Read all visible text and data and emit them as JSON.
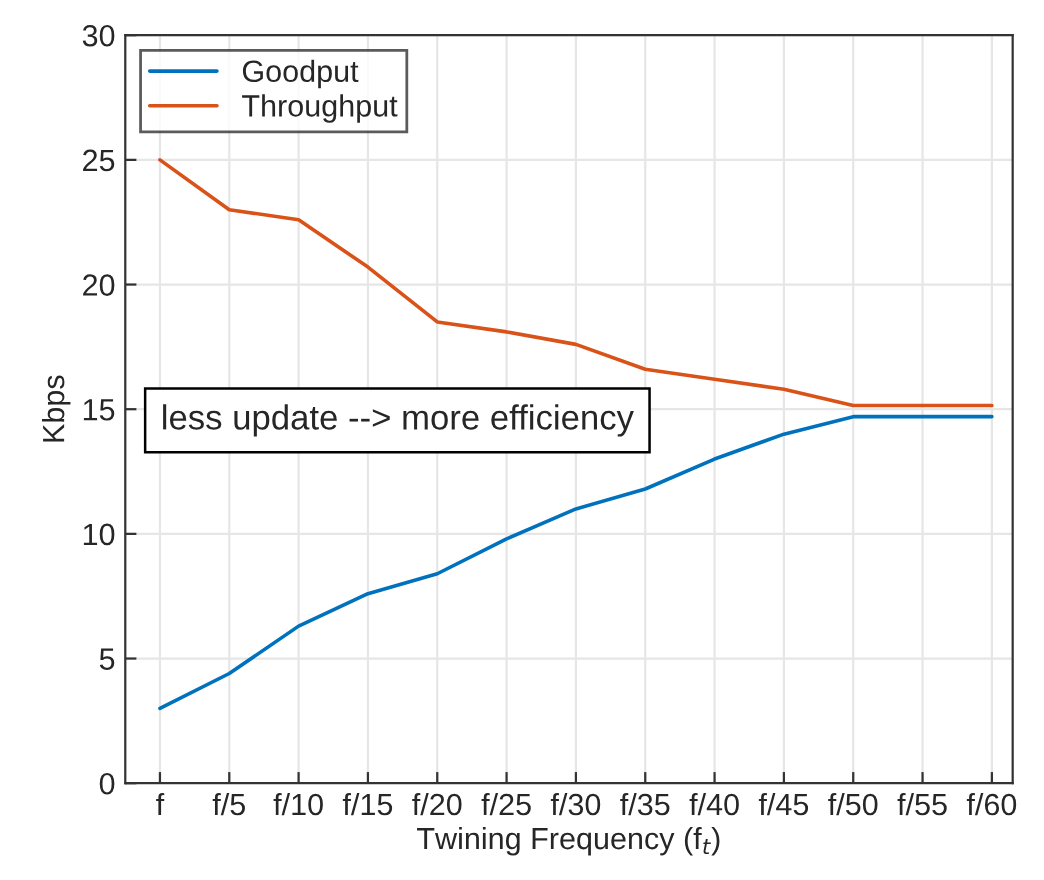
{
  "chart_data": {
    "type": "line",
    "xlabel": "Twining Frequency (f$_{t}$)",
    "ylabel": "Kbps",
    "categories": [
      "f",
      "f/5",
      "f/10",
      "f/15",
      "f/20",
      "f/25",
      "f/30",
      "f/35",
      "f/40",
      "f/45",
      "f/50",
      "f/55",
      "f/60"
    ],
    "series": [
      {
        "name": "Goodput",
        "color": "#0072bd",
        "values": [
          3.0,
          4.4,
          6.3,
          7.6,
          8.4,
          9.8,
          11.0,
          11.8,
          13.0,
          14.0,
          14.7,
          14.7,
          14.7
        ]
      },
      {
        "name": "Throughput",
        "color": "#d95319",
        "values": [
          25.0,
          23.0,
          22.6,
          20.7,
          18.5,
          18.1,
          17.6,
          16.6,
          16.2,
          15.8,
          15.15,
          15.15,
          15.15
        ]
      }
    ],
    "ylim": [
      0,
      30
    ],
    "yticks": [
      0,
      5,
      10,
      15,
      20,
      25,
      30
    ],
    "grid": true,
    "legend": "top left",
    "annotations": [
      "less update --> more efficiency"
    ]
  }
}
